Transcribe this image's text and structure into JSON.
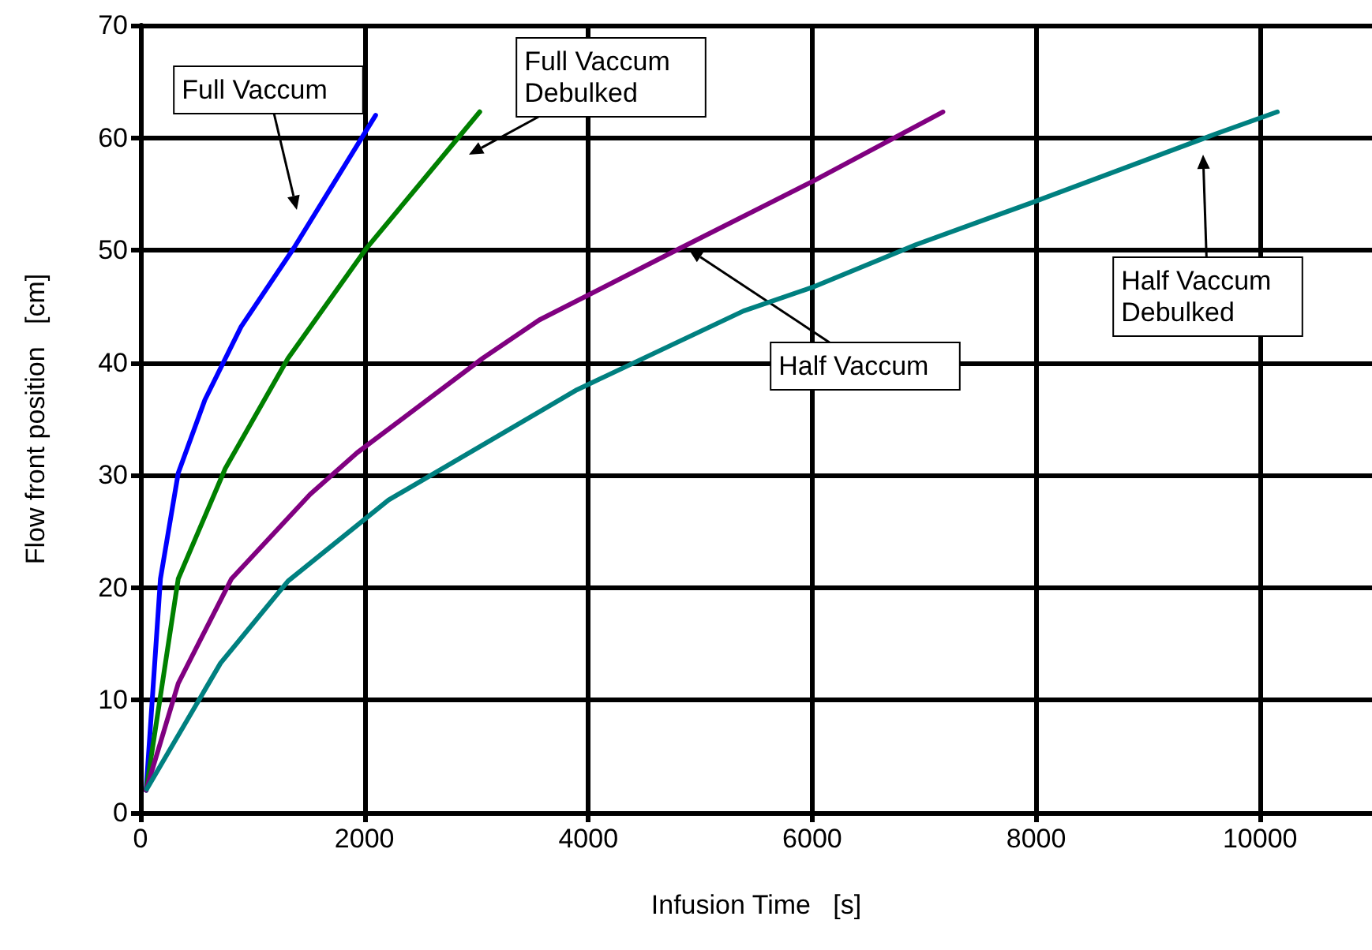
{
  "chart_data": {
    "type": "line",
    "xlabel": "Infusion Time   [s]",
    "ylabel": "Flow front position   [cm]",
    "xlim": [
      0,
      11000
    ],
    "ylim": [
      0,
      70
    ],
    "xticks": [
      0,
      2000,
      4000,
      6000,
      8000,
      10000
    ],
    "yticks": [
      0,
      10,
      20,
      30,
      40,
      50,
      60,
      70
    ],
    "grid": true,
    "marker": "none",
    "line_style": "solid",
    "series": [
      {
        "color": "#0000ff",
        "x": [
          50,
          178,
          337,
          575,
          898,
          1370,
          2100
        ],
        "values": [
          2,
          20.8,
          30.2,
          36.7,
          43.2,
          50.2,
          62
        ]
      },
      {
        "color": "#008000",
        "x": [
          50,
          337,
          757,
          1318,
          2020,
          3030
        ],
        "values": [
          2,
          20.8,
          30.6,
          40.4,
          50.2,
          62.3
        ]
      },
      {
        "color": "#800080",
        "x": [
          50,
          337,
          813,
          1515,
          1935,
          3057,
          3562,
          4825,
          6000,
          7167
        ],
        "values": [
          2,
          11.5,
          20.8,
          28.3,
          32,
          40.4,
          43.8,
          50.2,
          56.1,
          62.3
        ]
      },
      {
        "color": "#008080",
        "x": [
          56,
          715,
          1318,
          2216,
          3899,
          5386,
          6000,
          6928,
          7980,
          9593,
          10154
        ],
        "values": [
          2.1,
          13.3,
          20.6,
          27.8,
          37.6,
          44.6,
          46.7,
          50.5,
          54.3,
          60.3,
          62.3
        ]
      }
    ],
    "annotations": [
      "Full Vaccum",
      "Full Vaccum\nDebulked",
      {
        "text": "Half Vaccum",
        "x": 4895,
        "y": 50.1
      },
      "Half Vaccum\nDebulked"
    ]
  }
}
